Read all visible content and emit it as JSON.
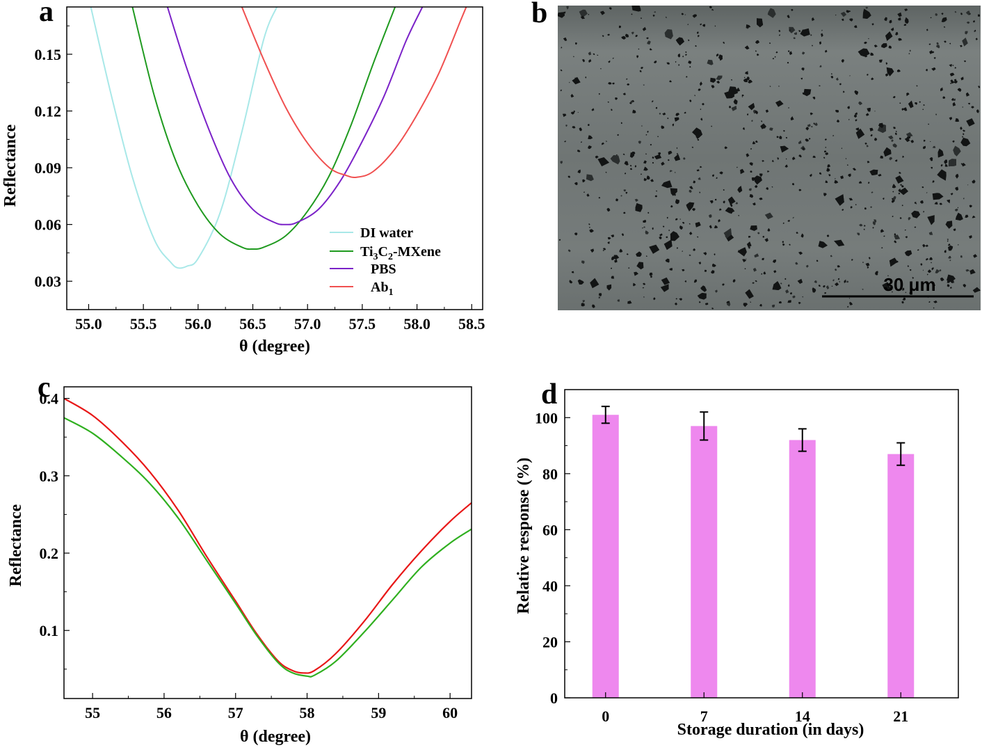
{
  "panel_labels": {
    "a": "a",
    "b": "b",
    "c": "c",
    "d": "d"
  },
  "colors": {
    "di_water": "#a8e8e8",
    "mxene": "#1f9a1f",
    "pbs": "#7b22c8",
    "ab1": "#f05050",
    "c_red": "#e81818",
    "c_green": "#30b020",
    "bar": "#ee88ee",
    "sem_bg": "#6d7372"
  },
  "chart_data": [
    {
      "panel": "a",
      "type": "line",
      "xlabel": "θ (degree)",
      "ylabel": "Reflectance",
      "xlim": [
        54.8,
        58.6
      ],
      "ylim": [
        0.015,
        0.175
      ],
      "xticks": [
        "55.0",
        "55.5",
        "56.0",
        "56.5",
        "57.0",
        "57.5",
        "58.0",
        "58.5"
      ],
      "yticks": [
        "0.03",
        "0.06",
        "0.09",
        "0.12",
        "0.15"
      ],
      "legend": {
        "position": "lower-right",
        "entries": [
          {
            "key": "di_water",
            "label": "DI water"
          },
          {
            "key": "mxene",
            "label_main": "Ti",
            "sub1": "3",
            "label_mid": "C",
            "sub2": "2",
            "label_end": "-MXene"
          },
          {
            "key": "pbs",
            "label": "PBS"
          },
          {
            "key": "ab1",
            "label_main": "Ab",
            "sub1": "1"
          }
        ]
      },
      "series": [
        {
          "key": "di_water",
          "x": [
            55.02,
            55.2,
            55.4,
            55.6,
            55.75,
            55.82,
            55.9,
            56.0,
            56.2,
            56.4,
            56.6,
            56.72
          ],
          "y": [
            0.175,
            0.13,
            0.085,
            0.052,
            0.04,
            0.037,
            0.038,
            0.042,
            0.066,
            0.109,
            0.158,
            0.175
          ]
        },
        {
          "key": "mxene",
          "x": [
            55.4,
            55.6,
            55.8,
            56.0,
            56.2,
            56.4,
            56.5,
            56.6,
            56.8,
            57.0,
            57.2,
            57.4,
            57.6,
            57.8
          ],
          "y": [
            0.175,
            0.128,
            0.093,
            0.07,
            0.055,
            0.048,
            0.047,
            0.048,
            0.054,
            0.067,
            0.086,
            0.113,
            0.145,
            0.175
          ]
        },
        {
          "key": "pbs",
          "x": [
            55.72,
            55.9,
            56.1,
            56.3,
            56.5,
            56.7,
            56.8,
            56.9,
            57.1,
            57.3,
            57.5,
            57.7,
            57.9,
            58.05
          ],
          "y": [
            0.175,
            0.142,
            0.11,
            0.084,
            0.068,
            0.061,
            0.06,
            0.061,
            0.068,
            0.083,
            0.104,
            0.128,
            0.157,
            0.175
          ]
        },
        {
          "key": "ab1",
          "x": [
            56.4,
            56.6,
            56.8,
            57.0,
            57.2,
            57.35,
            57.45,
            57.6,
            57.8,
            58.0,
            58.2,
            58.4,
            58.45
          ],
          "y": [
            0.175,
            0.147,
            0.122,
            0.103,
            0.09,
            0.086,
            0.085,
            0.088,
            0.1,
            0.118,
            0.14,
            0.168,
            0.175
          ]
        }
      ]
    },
    {
      "panel": "c",
      "type": "line",
      "xlabel": "θ (degree)",
      "ylabel": "Reflectance",
      "xlim": [
        54.6,
        60.3
      ],
      "ylim": [
        0.012,
        0.415
      ],
      "xticks": [
        "55",
        "56",
        "57",
        "58",
        "59",
        "60"
      ],
      "yticks": [
        "0.1",
        "0.2",
        "0.3",
        "0.4"
      ],
      "series": [
        {
          "key": "c_red",
          "x": [
            54.6,
            55.0,
            55.4,
            55.8,
            56.2,
            56.6,
            57.0,
            57.3,
            57.6,
            57.8,
            57.95,
            58.1,
            58.4,
            58.8,
            59.2,
            59.6,
            60.0,
            60.3
          ],
          "y": [
            0.4,
            0.378,
            0.345,
            0.305,
            0.255,
            0.195,
            0.138,
            0.095,
            0.06,
            0.048,
            0.045,
            0.048,
            0.07,
            0.112,
            0.16,
            0.203,
            0.241,
            0.265
          ]
        },
        {
          "key": "c_green",
          "x": [
            54.6,
            55.0,
            55.4,
            55.8,
            56.2,
            56.6,
            57.0,
            57.3,
            57.6,
            57.8,
            58.0,
            58.1,
            58.4,
            58.8,
            59.2,
            59.6,
            60.0,
            60.3
          ],
          "y": [
            0.375,
            0.355,
            0.325,
            0.29,
            0.245,
            0.19,
            0.135,
            0.093,
            0.058,
            0.045,
            0.041,
            0.042,
            0.06,
            0.098,
            0.14,
            0.182,
            0.213,
            0.231
          ]
        }
      ]
    },
    {
      "panel": "d",
      "type": "bar",
      "xlabel": "Storage duration (in days)",
      "ylabel": "Relative response (%)",
      "ylim": [
        0,
        110
      ],
      "yticks": [
        "0",
        "20",
        "40",
        "60",
        "80",
        "100"
      ],
      "categories": [
        "0",
        "7",
        "14",
        "21"
      ],
      "values": [
        101,
        97,
        92,
        87
      ],
      "errors": [
        3,
        5,
        4,
        4
      ]
    }
  ],
  "sem_image": {
    "scale_label": "30 μm"
  }
}
